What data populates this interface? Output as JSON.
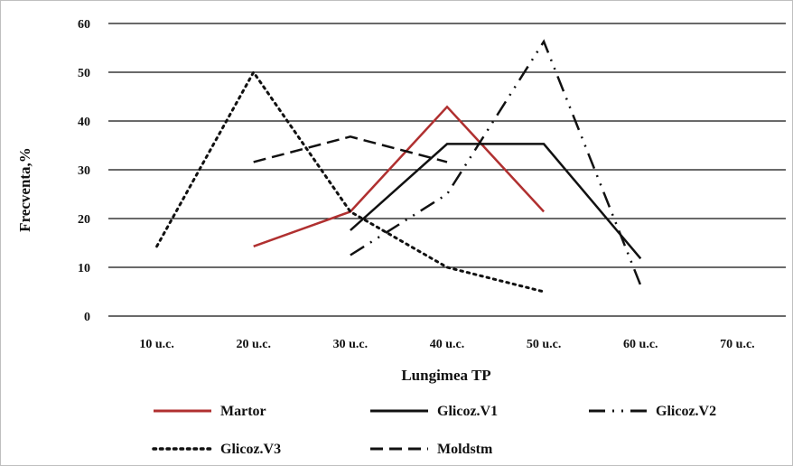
{
  "chart_data": {
    "type": "line",
    "title": "",
    "xlabel": "Lungimea TP",
    "ylabel": "Frecventa,%",
    "categories": [
      "10 u.c.",
      "20 u.c.",
      "30 u.c.",
      "40 u.c.",
      "50 u.c.",
      "60 u.c.",
      "70 u.c."
    ],
    "ylim": [
      0,
      60
    ],
    "yticks": [
      "0",
      "10",
      "20",
      "30",
      "40",
      "50",
      "60"
    ],
    "grid": "horizontal",
    "legend_position": "bottom",
    "series": [
      {
        "name": "Martor",
        "color": "#b03030",
        "dash": "solid",
        "width": 2.5,
        "values": [
          null,
          14.3,
          21.4,
          42.9,
          21.4,
          null,
          null
        ]
      },
      {
        "name": "Glicoz.V1",
        "color": "#111111",
        "dash": "solid",
        "width": 2.5,
        "values": [
          null,
          null,
          17.6,
          35.3,
          35.3,
          11.8,
          null
        ]
      },
      {
        "name": "Glicoz.V2",
        "color": "#111111",
        "dash": "dashdotdot",
        "width": 2.5,
        "values": [
          null,
          null,
          12.5,
          25.0,
          56.3,
          6.3,
          null
        ]
      },
      {
        "name": "Glicoz.V3",
        "color": "#111111",
        "dash": "dotted",
        "width": 3,
        "values": [
          14.3,
          50.0,
          21.4,
          10.0,
          5.0,
          null,
          null
        ]
      },
      {
        "name": "Moldstm",
        "color": "#111111",
        "dash": "dashed",
        "width": 2.5,
        "values": [
          null,
          31.6,
          36.8,
          31.6,
          null,
          null,
          null
        ]
      }
    ]
  }
}
